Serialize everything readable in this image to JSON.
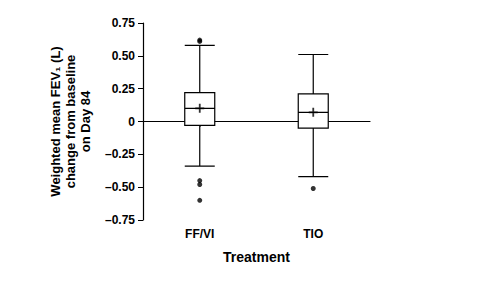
{
  "chart_data": {
    "type": "boxplot",
    "x_label": "Treatment",
    "y_label": "Weighted mean FEV₁ (L)\nchange from baseline\non Day 84",
    "categories": [
      "FF/VI",
      "TIO"
    ],
    "values": [
      [
        -0.34,
        -0.03,
        0.1,
        0.22,
        0.58
      ],
      [
        -0.42,
        -0.05,
        0.07,
        0.21,
        0.51
      ]
    ],
    "means": [
      0.1,
      0.07
    ],
    "outliers": [
      [
        0.61,
        0.62,
        -0.45,
        -0.48,
        -0.6
      ],
      [
        -0.51
      ]
    ],
    "color": "#000000",
    "ylim": [
      -0.75,
      0.75
    ],
    "yticks": [
      {
        "value": -0.75,
        "label": "–0.75"
      },
      {
        "value": -0.5,
        "label": "–0.50"
      },
      {
        "value": -0.25,
        "label": "–0.25"
      },
      0,
      0.25,
      {
        "value": 0.5,
        "label": "0.50"
      },
      0.75
    ],
    "grid": false
  }
}
